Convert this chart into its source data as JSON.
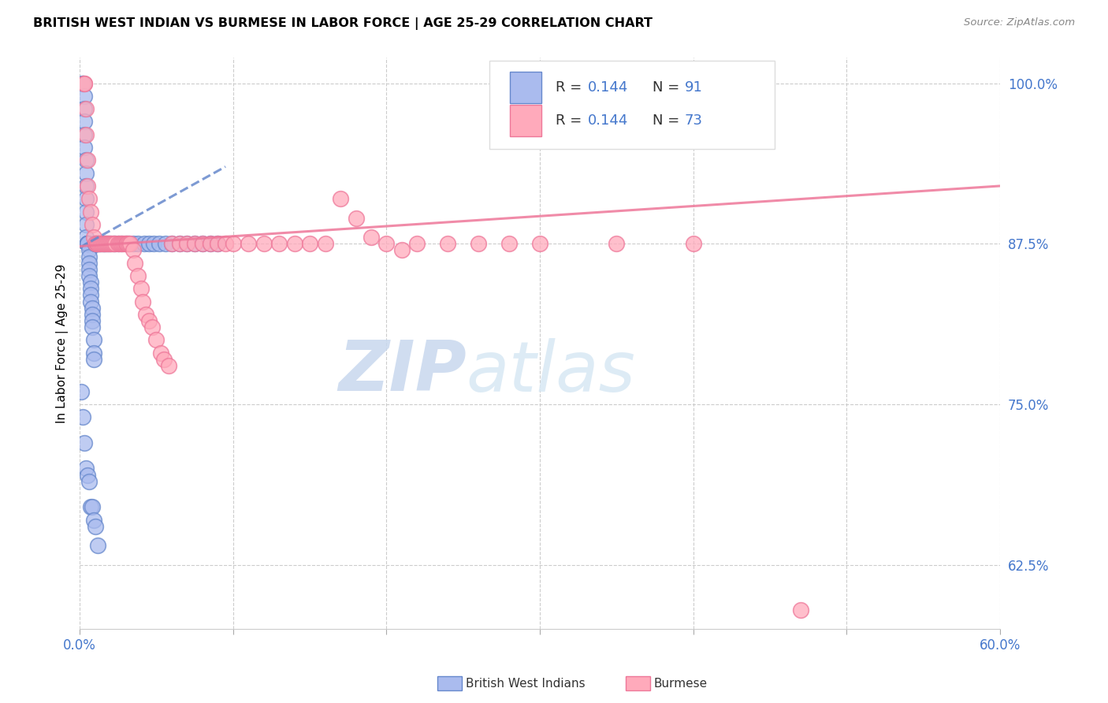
{
  "title": "BRITISH WEST INDIAN VS BURMESE IN LABOR FORCE | AGE 25-29 CORRELATION CHART",
  "source": "Source: ZipAtlas.com",
  "ylabel": "In Labor Force | Age 25-29",
  "xlim": [
    0.0,
    0.6
  ],
  "ylim": [
    0.575,
    1.02
  ],
  "xticks": [
    0.0,
    0.1,
    0.2,
    0.3,
    0.4,
    0.5,
    0.6
  ],
  "xticklabels": [
    "0.0%",
    "",
    "",
    "",
    "",
    "",
    "60.0%"
  ],
  "yticks": [
    0.625,
    0.75,
    0.875,
    1.0
  ],
  "yticklabels": [
    "62.5%",
    "75.0%",
    "87.5%",
    "100.0%"
  ],
  "blue_edge": "#6688cc",
  "blue_face": "#aabbee",
  "pink_edge": "#ee7799",
  "pink_face": "#ffaabb",
  "legend_r_blue": "0.144",
  "legend_n_blue": "91",
  "legend_r_pink": "0.144",
  "legend_n_pink": "73",
  "watermark": "ZIPatlas",
  "blue_trend_x": [
    0.0,
    0.095
  ],
  "blue_trend_y": [
    0.872,
    0.935
  ],
  "pink_trend_x": [
    0.0,
    0.6
  ],
  "pink_trend_y": [
    0.873,
    0.92
  ],
  "blue_x": [
    0.002,
    0.002,
    0.002,
    0.003,
    0.003,
    0.003,
    0.003,
    0.003,
    0.004,
    0.004,
    0.004,
    0.004,
    0.004,
    0.004,
    0.004,
    0.005,
    0.005,
    0.005,
    0.005,
    0.005,
    0.005,
    0.005,
    0.005,
    0.005,
    0.005,
    0.006,
    0.006,
    0.006,
    0.006,
    0.006,
    0.007,
    0.007,
    0.007,
    0.007,
    0.008,
    0.008,
    0.008,
    0.008,
    0.009,
    0.009,
    0.009,
    0.01,
    0.01,
    0.01,
    0.01,
    0.01,
    0.011,
    0.011,
    0.012,
    0.012,
    0.013,
    0.013,
    0.014,
    0.015,
    0.016,
    0.016,
    0.017,
    0.018,
    0.019,
    0.02,
    0.022,
    0.023,
    0.025,
    0.027,
    0.03,
    0.032,
    0.035,
    0.038,
    0.042,
    0.045,
    0.048,
    0.052,
    0.056,
    0.06,
    0.065,
    0.07,
    0.075,
    0.08,
    0.085,
    0.09,
    0.001,
    0.002,
    0.003,
    0.004,
    0.005,
    0.006,
    0.007,
    0.008,
    0.009,
    0.01,
    0.012
  ],
  "blue_y": [
    1.0,
    1.0,
    1.0,
    0.99,
    0.98,
    0.97,
    0.96,
    0.95,
    0.94,
    0.93,
    0.92,
    0.91,
    0.9,
    0.89,
    0.88,
    0.875,
    0.875,
    0.875,
    0.875,
    0.875,
    0.875,
    0.875,
    0.875,
    0.875,
    0.875,
    0.87,
    0.865,
    0.86,
    0.855,
    0.85,
    0.845,
    0.84,
    0.835,
    0.83,
    0.825,
    0.82,
    0.815,
    0.81,
    0.8,
    0.79,
    0.785,
    0.875,
    0.875,
    0.875,
    0.875,
    0.875,
    0.875,
    0.875,
    0.875,
    0.875,
    0.875,
    0.875,
    0.875,
    0.875,
    0.875,
    0.875,
    0.875,
    0.875,
    0.875,
    0.875,
    0.875,
    0.875,
    0.875,
    0.875,
    0.875,
    0.875,
    0.875,
    0.875,
    0.875,
    0.875,
    0.875,
    0.875,
    0.875,
    0.875,
    0.875,
    0.875,
    0.875,
    0.875,
    0.875,
    0.875,
    0.76,
    0.74,
    0.72,
    0.7,
    0.695,
    0.69,
    0.67,
    0.67,
    0.66,
    0.655,
    0.64
  ],
  "pink_x": [
    0.003,
    0.003,
    0.004,
    0.004,
    0.005,
    0.005,
    0.006,
    0.007,
    0.008,
    0.009,
    0.01,
    0.011,
    0.012,
    0.013,
    0.014,
    0.015,
    0.016,
    0.017,
    0.018,
    0.019,
    0.02,
    0.021,
    0.022,
    0.023,
    0.025,
    0.026,
    0.027,
    0.028,
    0.029,
    0.03,
    0.031,
    0.032,
    0.033,
    0.035,
    0.036,
    0.038,
    0.04,
    0.041,
    0.043,
    0.045,
    0.047,
    0.05,
    0.053,
    0.055,
    0.058,
    0.06,
    0.065,
    0.07,
    0.075,
    0.08,
    0.085,
    0.09,
    0.095,
    0.1,
    0.11,
    0.12,
    0.13,
    0.14,
    0.15,
    0.16,
    0.17,
    0.18,
    0.19,
    0.2,
    0.21,
    0.22,
    0.24,
    0.26,
    0.28,
    0.3,
    0.35,
    0.4,
    0.47
  ],
  "pink_y": [
    1.0,
    1.0,
    0.98,
    0.96,
    0.94,
    0.92,
    0.91,
    0.9,
    0.89,
    0.88,
    0.875,
    0.875,
    0.875,
    0.875,
    0.875,
    0.875,
    0.875,
    0.875,
    0.875,
    0.875,
    0.875,
    0.875,
    0.875,
    0.875,
    0.875,
    0.875,
    0.875,
    0.875,
    0.875,
    0.875,
    0.875,
    0.875,
    0.875,
    0.87,
    0.86,
    0.85,
    0.84,
    0.83,
    0.82,
    0.815,
    0.81,
    0.8,
    0.79,
    0.785,
    0.78,
    0.875,
    0.875,
    0.875,
    0.875,
    0.875,
    0.875,
    0.875,
    0.875,
    0.875,
    0.875,
    0.875,
    0.875,
    0.875,
    0.875,
    0.875,
    0.91,
    0.895,
    0.88,
    0.875,
    0.87,
    0.875,
    0.875,
    0.875,
    0.875,
    0.875,
    0.875,
    0.875,
    0.59
  ]
}
